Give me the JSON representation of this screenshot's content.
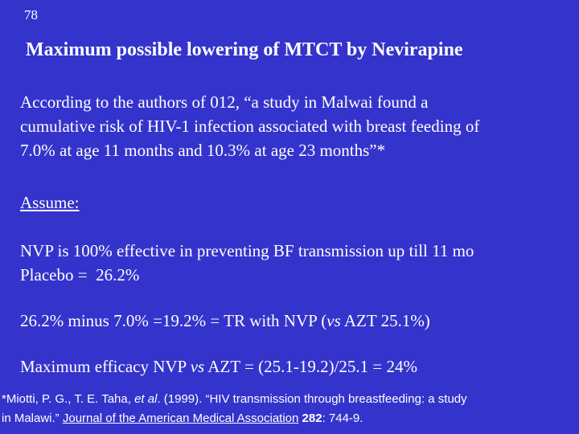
{
  "slide_number": "78",
  "title": "Maximum possible lowering of MTCT by Nevirapine",
  "quote_lines": [
    "According to the authors of 012, “a study in Malwai found a",
    "cumulative risk of HIV-1 infection associated with breast feeding of",
    "7.0% at age 11 months and 10.3% at age 23 months”*"
  ],
  "assume_heading": "Assume:",
  "assumption_lines": [
    "NVP is 100% effective in preventing BF transmission up till 11 mo",
    "Placebo =  26.2%"
  ],
  "calculation": [
    "26.2% minus 7.0% =19.2% = TR with NVP (",
    "vs",
    " AZT 25.1%)"
  ],
  "efficacy": [
    "Maximum efficacy NVP ",
    "vs",
    " AZT = (25.1-19.2)/25.1 = 24%"
  ],
  "footnote": {
    "line1": [
      "*Miotti, P. G., T. E. Taha, ",
      "et al",
      ". (1999). “HIV transmission through breastfeeding: a study"
    ],
    "line2": [
      "in Malawi.” ",
      "Journal of the American Medical Association",
      " ",
      "282",
      ": 744-9."
    ]
  }
}
